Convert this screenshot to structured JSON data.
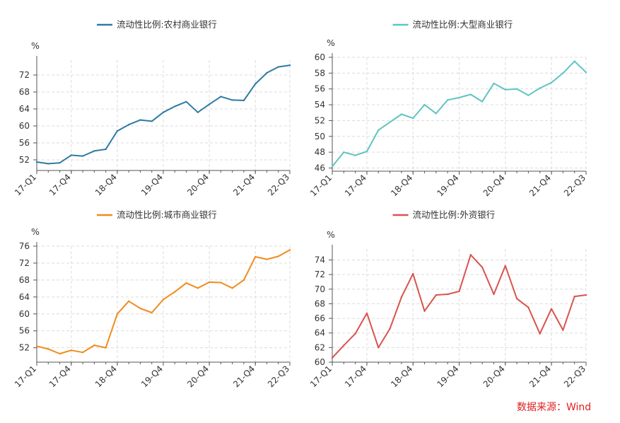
{
  "source_note": "数据来源：Wind",
  "chart_data": [
    {
      "type": "line",
      "legend": "流动性比例:农村商业银行",
      "color": "#2f7ba4",
      "yunit": "%",
      "ylim": [
        49.5,
        75.5
      ],
      "yticks": [
        52,
        56,
        60,
        64,
        68,
        72
      ],
      "grid": true,
      "legend_position": "top-center",
      "xticks": [
        "17-Q1",
        "17-Q4",
        "18-Q4",
        "19-Q4",
        "20-Q4",
        "21-Q4",
        "22-Q3"
      ],
      "x": [
        "17-Q1",
        "17-Q2",
        "17-Q3",
        "17-Q4",
        "18-Q1",
        "18-Q2",
        "18-Q3",
        "18-Q4",
        "19-Q1",
        "19-Q2",
        "19-Q3",
        "19-Q4",
        "20-Q1",
        "20-Q2",
        "20-Q3",
        "20-Q4",
        "21-Q1",
        "21-Q2",
        "21-Q3",
        "21-Q4",
        "22-Q1",
        "22-Q2",
        "22-Q3"
      ],
      "values": [
        51.5,
        51.1,
        51.3,
        53.1,
        52.9,
        54.1,
        54.5,
        58.8,
        60.3,
        61.4,
        61.1,
        63.2,
        64.6,
        65.7,
        63.2,
        65.1,
        66.9,
        66.1,
        66.0,
        69.9,
        72.5,
        73.9,
        74.3
      ]
    },
    {
      "type": "line",
      "legend": "流动性比例:大型商业银行",
      "color": "#5ec5c2",
      "yunit": "%",
      "ylim": [
        45.6,
        60.0
      ],
      "yticks": [
        46,
        48,
        50,
        52,
        54,
        56,
        58,
        60
      ],
      "grid": true,
      "legend_position": "top-center",
      "xticks": [
        "17-Q1",
        "17-Q4",
        "18-Q4",
        "19-Q4",
        "20-Q4",
        "21-Q4",
        "22-Q3"
      ],
      "x": [
        "17-Q1",
        "17-Q2",
        "17-Q3",
        "17-Q4",
        "18-Q1",
        "18-Q2",
        "18-Q3",
        "18-Q4",
        "19-Q1",
        "19-Q2",
        "19-Q3",
        "19-Q4",
        "20-Q1",
        "20-Q2",
        "20-Q3",
        "20-Q4",
        "21-Q1",
        "21-Q2",
        "21-Q3",
        "21-Q4",
        "22-Q1",
        "22-Q2",
        "22-Q3"
      ],
      "values": [
        46.2,
        48.0,
        47.6,
        48.1,
        50.8,
        51.8,
        52.8,
        52.3,
        54.0,
        52.9,
        54.6,
        54.9,
        55.3,
        54.4,
        56.7,
        55.9,
        56.0,
        55.2,
        56.1,
        56.8,
        58.0,
        59.5,
        58.1
      ]
    },
    {
      "type": "line",
      "legend": "流动性比例:城市商业银行",
      "color": "#f08c1e",
      "yunit": "%",
      "ylim": [
        48.6,
        76.0
      ],
      "yticks": [
        52,
        56,
        60,
        64,
        68,
        72,
        76
      ],
      "grid": true,
      "legend_position": "top-center",
      "xticks": [
        "17-Q1",
        "17-Q4",
        "18-Q4",
        "19-Q4",
        "20-Q4",
        "21-Q4",
        "22-Q3"
      ],
      "x": [
        "17-Q1",
        "17-Q2",
        "17-Q3",
        "17-Q4",
        "18-Q1",
        "18-Q2",
        "18-Q3",
        "18-Q4",
        "19-Q1",
        "19-Q2",
        "19-Q3",
        "19-Q4",
        "20-Q1",
        "20-Q2",
        "20-Q3",
        "20-Q4",
        "21-Q1",
        "21-Q2",
        "21-Q3",
        "21-Q4",
        "22-Q1",
        "22-Q2",
        "22-Q3"
      ],
      "values": [
        52.4,
        51.7,
        50.6,
        51.4,
        50.9,
        52.6,
        52.0,
        60.0,
        63.0,
        61.3,
        60.3,
        63.4,
        65.2,
        67.3,
        66.1,
        67.5,
        67.4,
        66.1,
        68.0,
        73.5,
        72.9,
        73.6,
        75.1
      ]
    },
    {
      "type": "line",
      "legend": "流动性比例:外资银行",
      "color": "#d9534f",
      "yunit": "%",
      "ylim": [
        60,
        75.5
      ],
      "yticks": [
        60,
        62,
        64,
        66,
        68,
        70,
        72,
        74
      ],
      "grid": true,
      "legend_position": "top-center",
      "xticks": [
        "17-Q1",
        "17-Q4",
        "18-Q4",
        "19-Q4",
        "20-Q4",
        "21-Q4",
        "22-Q3"
      ],
      "x": [
        "17-Q1",
        "17-Q2",
        "17-Q3",
        "17-Q4",
        "18-Q1",
        "18-Q2",
        "18-Q3",
        "18-Q4",
        "19-Q1",
        "19-Q2",
        "19-Q3",
        "19-Q4",
        "20-Q1",
        "20-Q2",
        "20-Q3",
        "20-Q4",
        "21-Q1",
        "21-Q2",
        "21-Q3",
        "21-Q4",
        "22-Q1",
        "22-Q2",
        "22-Q3"
      ],
      "values": [
        60.6,
        62.3,
        63.9,
        66.7,
        62.0,
        64.6,
        68.9,
        72.1,
        67.0,
        69.2,
        69.3,
        69.7,
        74.7,
        73.0,
        69.3,
        73.2,
        68.7,
        67.5,
        63.9,
        67.3,
        64.4,
        69.0,
        69.2
      ]
    }
  ]
}
